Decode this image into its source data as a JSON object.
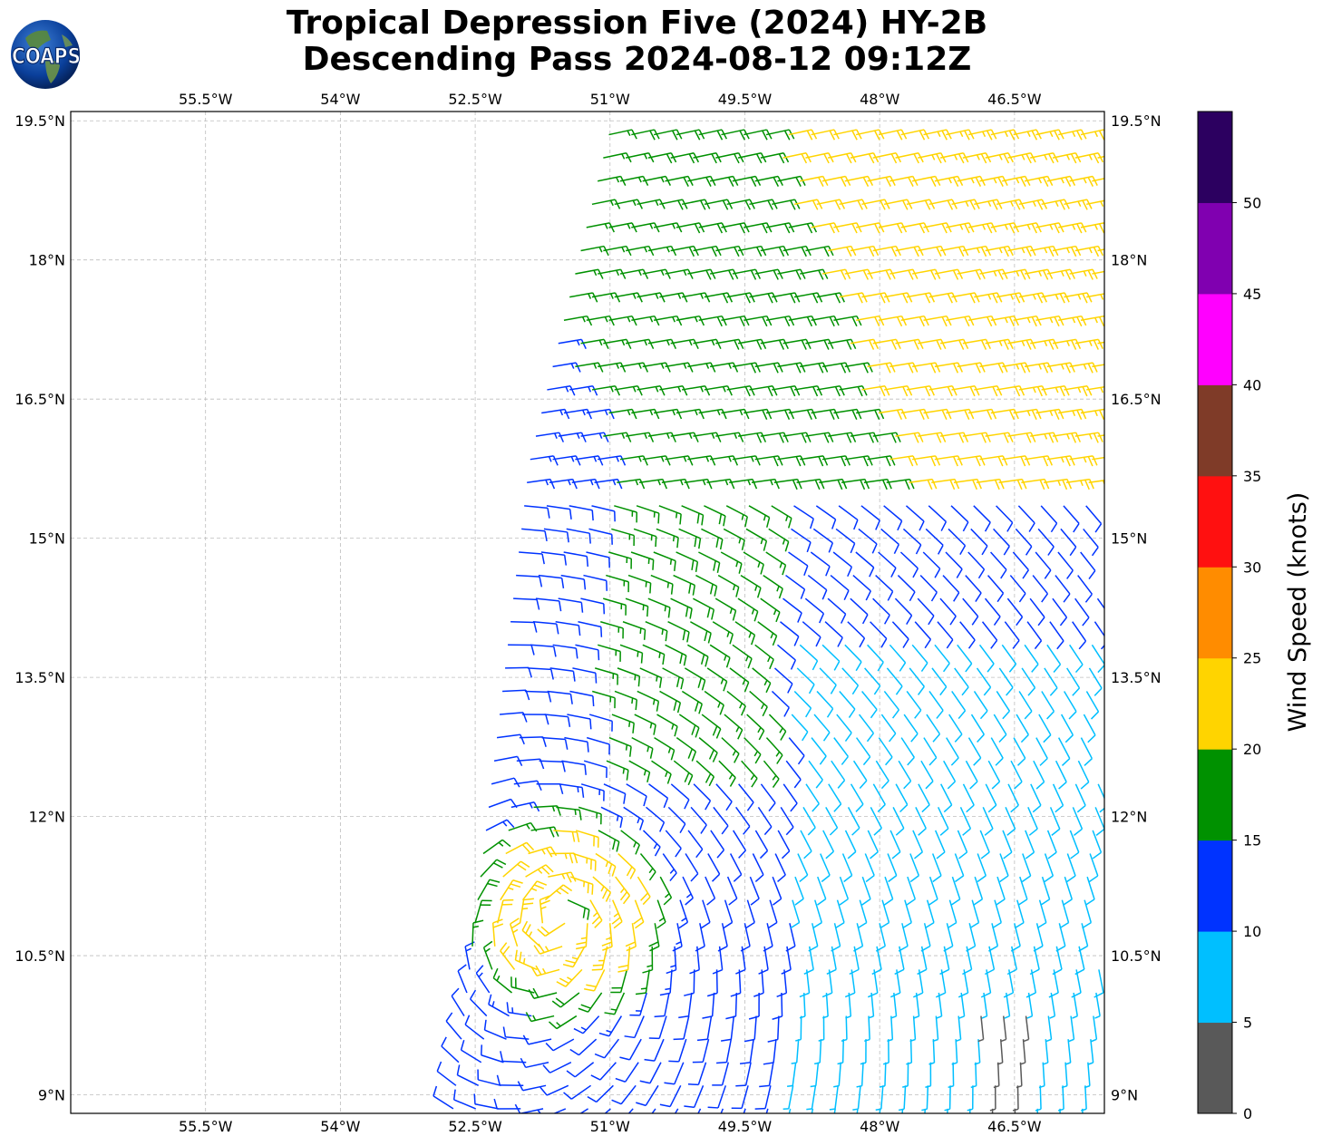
{
  "title": {
    "line1": "Tropical Depression Five (2024) HY-2B",
    "line2": "Descending Pass 2024-08-12 09:12Z"
  },
  "logo": {
    "text": "COAPS",
    "icon": "globe-icon"
  },
  "map": {
    "lon_range": [
      -57.0,
      -45.5
    ],
    "lat_range": [
      8.8,
      19.6
    ],
    "lon_ticks": [
      {
        "value": -55.5,
        "label": "55.5°W"
      },
      {
        "value": -54.0,
        "label": "54°W"
      },
      {
        "value": -52.5,
        "label": "52.5°W"
      },
      {
        "value": -51.0,
        "label": "51°W"
      },
      {
        "value": -49.5,
        "label": "49.5°W"
      },
      {
        "value": -48.0,
        "label": "48°W"
      },
      {
        "value": -46.5,
        "label": "46.5°W"
      }
    ],
    "lat_ticks": [
      {
        "value": 9.0,
        "label": "9°N"
      },
      {
        "value": 10.5,
        "label": "10.5°N"
      },
      {
        "value": 12.0,
        "label": "12°N"
      },
      {
        "value": 13.5,
        "label": "13.5°N"
      },
      {
        "value": 15.0,
        "label": "15°N"
      },
      {
        "value": 16.5,
        "label": "16.5°N"
      },
      {
        "value": 18.0,
        "label": "18°N"
      },
      {
        "value": 19.5,
        "label": "19.5°N"
      }
    ],
    "grid": true,
    "swath_western_edge": [
      {
        "lat": 8.8,
        "lon": -52.75
      },
      {
        "lat": 15.8,
        "lon": -51.9
      },
      {
        "lat": 19.6,
        "lon": -50.95
      }
    ],
    "storm_center": {
      "lat": 11.0,
      "lon": -51.5
    }
  },
  "colorbar": {
    "label": "Wind Speed (knots)",
    "placement": "right",
    "bins": [
      {
        "min": 0,
        "max": 5,
        "color": "#595959"
      },
      {
        "min": 5,
        "max": 10,
        "color": "#00bfff"
      },
      {
        "min": 10,
        "max": 15,
        "color": "#0033ff"
      },
      {
        "min": 15,
        "max": 20,
        "color": "#009100"
      },
      {
        "min": 20,
        "max": 25,
        "color": "#ffd400"
      },
      {
        "min": 25,
        "max": 30,
        "color": "#ff8c00"
      },
      {
        "min": 30,
        "max": 35,
        "color": "#ff1010"
      },
      {
        "min": 35,
        "max": 40,
        "color": "#7f3b28"
      },
      {
        "min": 40,
        "max": 45,
        "color": "#ff00ff"
      },
      {
        "min": 45,
        "max": 50,
        "color": "#8000b0"
      },
      {
        "min": 50,
        "max": 55,
        "color": "#2c0060"
      }
    ],
    "ticks": [
      "0",
      "5",
      "10",
      "15",
      "20",
      "25",
      "30",
      "35",
      "40",
      "45",
      "50"
    ]
  }
}
